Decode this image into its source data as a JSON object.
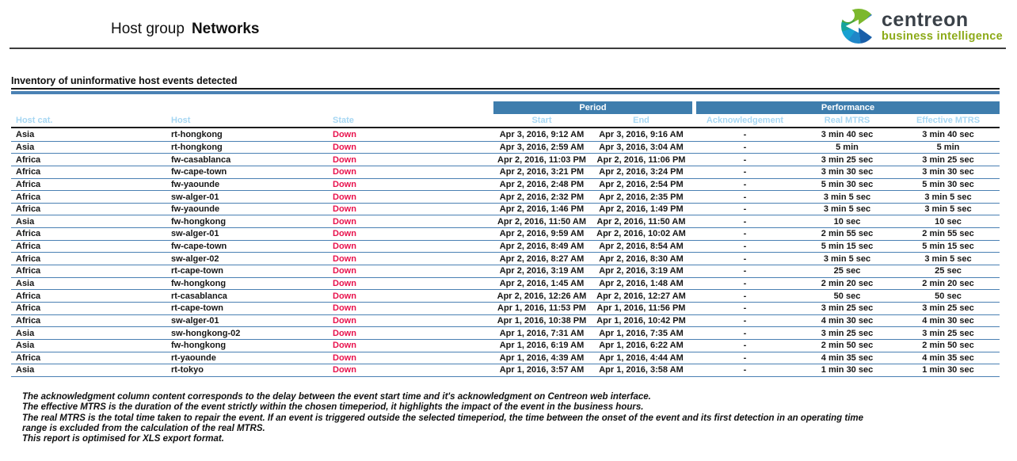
{
  "header": {
    "title_prefix": "Host group",
    "title_name": "Networks",
    "logo": {
      "brand": "centreon",
      "tagline": "business intelligence"
    }
  },
  "section": {
    "title": "Inventory of uninformative host events detected"
  },
  "table": {
    "group_headers": {
      "period": "Period",
      "performance": "Performance"
    },
    "columns": [
      "Host cat.",
      "Host",
      "State",
      "Start",
      "End",
      "Acknowledgement",
      "Real MTRS",
      "Effective MTRS"
    ],
    "rows": [
      {
        "host_cat": "Asia",
        "host": "rt-hongkong",
        "state": "Down",
        "start": "Apr 3, 2016, 9:12 AM",
        "end": "Apr 3, 2016, 9:16 AM",
        "ack": "-",
        "real_mtrs": "3 min 40 sec",
        "effective_mtrs": "3 min 40 sec"
      },
      {
        "host_cat": "Asia",
        "host": "rt-hongkong",
        "state": "Down",
        "start": "Apr 3, 2016, 2:59 AM",
        "end": "Apr 3, 2016, 3:04 AM",
        "ack": "-",
        "real_mtrs": "5 min",
        "effective_mtrs": "5 min"
      },
      {
        "host_cat": "Africa",
        "host": "fw-casablanca",
        "state": "Down",
        "start": "Apr 2, 2016, 11:03 PM",
        "end": "Apr 2, 2016, 11:06 PM",
        "ack": "-",
        "real_mtrs": "3 min 25 sec",
        "effective_mtrs": "3 min 25 sec"
      },
      {
        "host_cat": "Africa",
        "host": "fw-cape-town",
        "state": "Down",
        "start": "Apr 2, 2016, 3:21 PM",
        "end": "Apr 2, 2016, 3:24 PM",
        "ack": "-",
        "real_mtrs": "3 min 30 sec",
        "effective_mtrs": "3 min 30 sec"
      },
      {
        "host_cat": "Africa",
        "host": "fw-yaounde",
        "state": "Down",
        "start": "Apr 2, 2016, 2:48 PM",
        "end": "Apr 2, 2016, 2:54 PM",
        "ack": "-",
        "real_mtrs": "5 min 30 sec",
        "effective_mtrs": "5 min 30 sec"
      },
      {
        "host_cat": "Africa",
        "host": "sw-alger-01",
        "state": "Down",
        "start": "Apr 2, 2016, 2:32 PM",
        "end": "Apr 2, 2016, 2:35 PM",
        "ack": "-",
        "real_mtrs": "3 min 5 sec",
        "effective_mtrs": "3 min 5 sec"
      },
      {
        "host_cat": "Africa",
        "host": "fw-yaounde",
        "state": "Down",
        "start": "Apr 2, 2016, 1:46 PM",
        "end": "Apr 2, 2016, 1:49 PM",
        "ack": "-",
        "real_mtrs": "3 min 5 sec",
        "effective_mtrs": "3 min 5 sec"
      },
      {
        "host_cat": "Asia",
        "host": "fw-hongkong",
        "state": "Down",
        "start": "Apr 2, 2016, 11:50 AM",
        "end": "Apr 2, 2016, 11:50 AM",
        "ack": "-",
        "real_mtrs": "10 sec",
        "effective_mtrs": "10 sec"
      },
      {
        "host_cat": "Africa",
        "host": "sw-alger-01",
        "state": "Down",
        "start": "Apr 2, 2016, 9:59 AM",
        "end": "Apr 2, 2016, 10:02 AM",
        "ack": "-",
        "real_mtrs": "2 min 55 sec",
        "effective_mtrs": "2 min 55 sec"
      },
      {
        "host_cat": "Africa",
        "host": "fw-cape-town",
        "state": "Down",
        "start": "Apr 2, 2016, 8:49 AM",
        "end": "Apr 2, 2016, 8:54 AM",
        "ack": "-",
        "real_mtrs": "5 min 15 sec",
        "effective_mtrs": "5 min 15 sec"
      },
      {
        "host_cat": "Africa",
        "host": "sw-alger-02",
        "state": "Down",
        "start": "Apr 2, 2016, 8:27 AM",
        "end": "Apr 2, 2016, 8:30 AM",
        "ack": "-",
        "real_mtrs": "3 min 5 sec",
        "effective_mtrs": "3 min 5 sec"
      },
      {
        "host_cat": "Africa",
        "host": "rt-cape-town",
        "state": "Down",
        "start": "Apr 2, 2016, 3:19 AM",
        "end": "Apr 2, 2016, 3:19 AM",
        "ack": "-",
        "real_mtrs": "25 sec",
        "effective_mtrs": "25 sec"
      },
      {
        "host_cat": "Asia",
        "host": "fw-hongkong",
        "state": "Down",
        "start": "Apr 2, 2016, 1:45 AM",
        "end": "Apr 2, 2016, 1:48 AM",
        "ack": "-",
        "real_mtrs": "2 min 20 sec",
        "effective_mtrs": "2 min 20 sec"
      },
      {
        "host_cat": "Africa",
        "host": "rt-casablanca",
        "state": "Down",
        "start": "Apr 2, 2016, 12:26 AM",
        "end": "Apr 2, 2016, 12:27 AM",
        "ack": "-",
        "real_mtrs": "50 sec",
        "effective_mtrs": "50 sec"
      },
      {
        "host_cat": "Africa",
        "host": "rt-cape-town",
        "state": "Down",
        "start": "Apr 1, 2016, 11:53 PM",
        "end": "Apr 1, 2016, 11:56 PM",
        "ack": "-",
        "real_mtrs": "3 min 25 sec",
        "effective_mtrs": "3 min 25 sec"
      },
      {
        "host_cat": "Africa",
        "host": "sw-alger-01",
        "state": "Down",
        "start": "Apr 1, 2016, 10:38 PM",
        "end": "Apr 1, 2016, 10:42 PM",
        "ack": "-",
        "real_mtrs": "4 min 30 sec",
        "effective_mtrs": "4 min 30 sec"
      },
      {
        "host_cat": "Asia",
        "host": "sw-hongkong-02",
        "state": "Down",
        "start": "Apr 1, 2016, 7:31 AM",
        "end": "Apr 1, 2016, 7:35 AM",
        "ack": "-",
        "real_mtrs": "3 min 25 sec",
        "effective_mtrs": "3 min 25 sec"
      },
      {
        "host_cat": "Asia",
        "host": "fw-hongkong",
        "state": "Down",
        "start": "Apr 1, 2016, 6:19 AM",
        "end": "Apr 1, 2016, 6:22 AM",
        "ack": "-",
        "real_mtrs": "2 min 50 sec",
        "effective_mtrs": "2 min 50 sec"
      },
      {
        "host_cat": "Africa",
        "host": "rt-yaounde",
        "state": "Down",
        "start": "Apr 1, 2016, 4:39 AM",
        "end": "Apr 1, 2016, 4:44 AM",
        "ack": "-",
        "real_mtrs": "4 min 35 sec",
        "effective_mtrs": "4 min 35 sec"
      },
      {
        "host_cat": "Asia",
        "host": "rt-tokyo",
        "state": "Down",
        "start": "Apr 1, 2016, 3:57 AM",
        "end": "Apr 1, 2016, 3:58 AM",
        "ack": "-",
        "real_mtrs": "1 min 30 sec",
        "effective_mtrs": "1 min 30 sec"
      }
    ]
  },
  "footer": {
    "lines": [
      "The acknowledgment column content corresponds to the delay between the event start time and it's acknowledgment on Centreon web interface.",
      "The effective MTRS is the duration of the event strictly within the chosen timeperiod, it highlights the impact of the event in the business hours.",
      "The real MTRS is the total time taken to repair the event. If an event is triggered outside the selected timeperiod, the time between the onset of the event and its first detection in an operating time",
      "range  is excluded from the calculation of the real MTRS.",
      "This report is optimised for XLS export format."
    ]
  },
  "colors": {
    "group_header_bg": "#3e7dad",
    "subheader_text": "#a6d7f3",
    "row_divider": "#4a80b3",
    "state_down": "#e8124d",
    "title_bar": "#4a82b4",
    "brand_dark": "#3a4148",
    "brand_green": "#8caa18"
  }
}
